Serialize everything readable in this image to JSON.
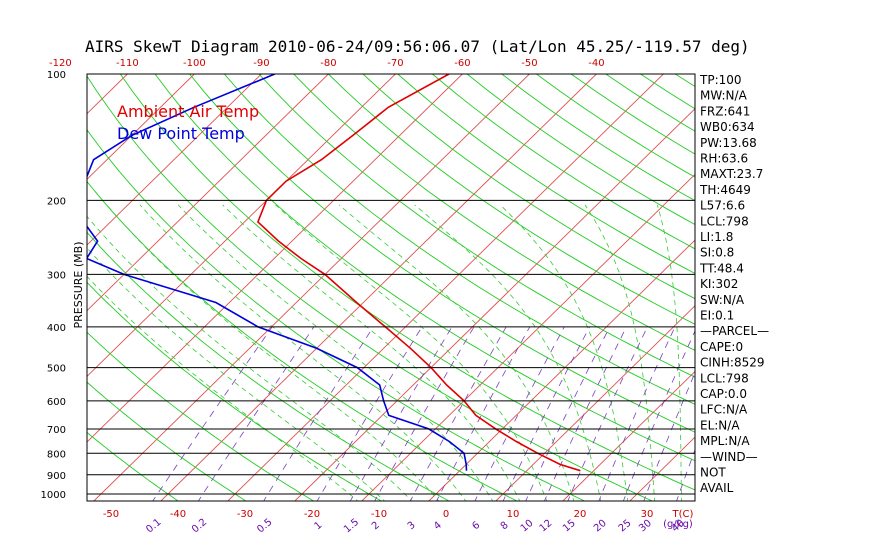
{
  "chart_data": {
    "type": "line",
    "title": "AIRS SkewT Diagram 2010-06-24/09:56:06.07 (Lat/Lon 45.25/-119.57 deg)",
    "ylabel": "PRESSURE (MB)",
    "ylim": [
      1000,
      100
    ],
    "y_scale": "log",
    "pressure_ticks": [
      100,
      200,
      300,
      400,
      500,
      600,
      700,
      800,
      900,
      1000
    ],
    "top_temp_ticks": [
      -120,
      -110,
      -100,
      -90,
      -80,
      -70,
      -60,
      -50,
      -40
    ],
    "bottom_temp_ticks": [
      -50,
      -40,
      -30,
      -20,
      -10,
      0,
      10,
      20,
      30
    ],
    "bottom_temp_unit": "T(C)",
    "mixing_ratio_ticks": [
      "0.1",
      "0.2",
      "0.5",
      "1",
      "1.5",
      "2",
      "3",
      "4",
      "6",
      "8",
      "10",
      "12",
      "15",
      "20",
      "25",
      "30",
      "40"
    ],
    "mixing_ratio_unit": "(g/kg)",
    "legend": {
      "placement": "top-left"
    },
    "series": [
      {
        "name": "Ambient Air Temp",
        "color": "#e00000",
        "points": [
          {
            "p": 100,
            "t": -62
          },
          {
            "p": 120,
            "t": -66
          },
          {
            "p": 140,
            "t": -67
          },
          {
            "p": 160,
            "t": -68
          },
          {
            "p": 180,
            "t": -70
          },
          {
            "p": 200,
            "t": -70
          },
          {
            "p": 225,
            "t": -68
          },
          {
            "p": 250,
            "t": -62
          },
          {
            "p": 275,
            "t": -56
          },
          {
            "p": 300,
            "t": -50
          },
          {
            "p": 350,
            "t": -41
          },
          {
            "p": 400,
            "t": -33
          },
          {
            "p": 450,
            "t": -26
          },
          {
            "p": 500,
            "t": -20
          },
          {
            "p": 550,
            "t": -15
          },
          {
            "p": 600,
            "t": -10
          },
          {
            "p": 650,
            "t": -6
          },
          {
            "p": 700,
            "t": -1
          },
          {
            "p": 750,
            "t": 4
          },
          {
            "p": 800,
            "t": 9
          },
          {
            "p": 850,
            "t": 14
          },
          {
            "p": 880,
            "t": 18
          }
        ]
      },
      {
        "name": "Dew Point Temp",
        "color": "#0000dd",
        "points": [
          {
            "p": 100,
            "t": -88
          },
          {
            "p": 120,
            "t": -95
          },
          {
            "p": 140,
            "t": -100
          },
          {
            "p": 160,
            "t": -102
          },
          {
            "p": 180,
            "t": -100
          },
          {
            "p": 200,
            "t": -98
          },
          {
            "p": 225,
            "t": -94
          },
          {
            "p": 250,
            "t": -89
          },
          {
            "p": 275,
            "t": -88
          },
          {
            "p": 300,
            "t": -80
          },
          {
            "p": 350,
            "t": -62
          },
          {
            "p": 400,
            "t": -52
          },
          {
            "p": 450,
            "t": -40
          },
          {
            "p": 500,
            "t": -31
          },
          {
            "p": 550,
            "t": -25
          },
          {
            "p": 600,
            "t": -22
          },
          {
            "p": 650,
            "t": -19
          },
          {
            "p": 700,
            "t": -11
          },
          {
            "p": 750,
            "t": -6
          },
          {
            "p": 800,
            "t": -2
          },
          {
            "p": 850,
            "t": 0
          },
          {
            "p": 880,
            "t": 1
          }
        ]
      }
    ],
    "indices": [
      "TP:100",
      "MW:N/A",
      "FRZ:641",
      "WB0:634",
      "PW:13.68",
      "RH:63.6",
      "MAXT:23.7",
      "TH:4649",
      "L57:6.6",
      "LCL:798",
      "LI:1.8",
      "SI:0.8",
      "TT:48.4",
      "KI:302",
      "SW:N/A",
      "EI:0.1",
      "—PARCEL—",
      "CAPE:0",
      "CINH:8529",
      "LCL:798",
      "CAP:0.0",
      "LFC:N/A",
      "EL:N/A",
      "MPL:N/A",
      "—WIND—",
      "NOT",
      "AVAIL"
    ]
  }
}
